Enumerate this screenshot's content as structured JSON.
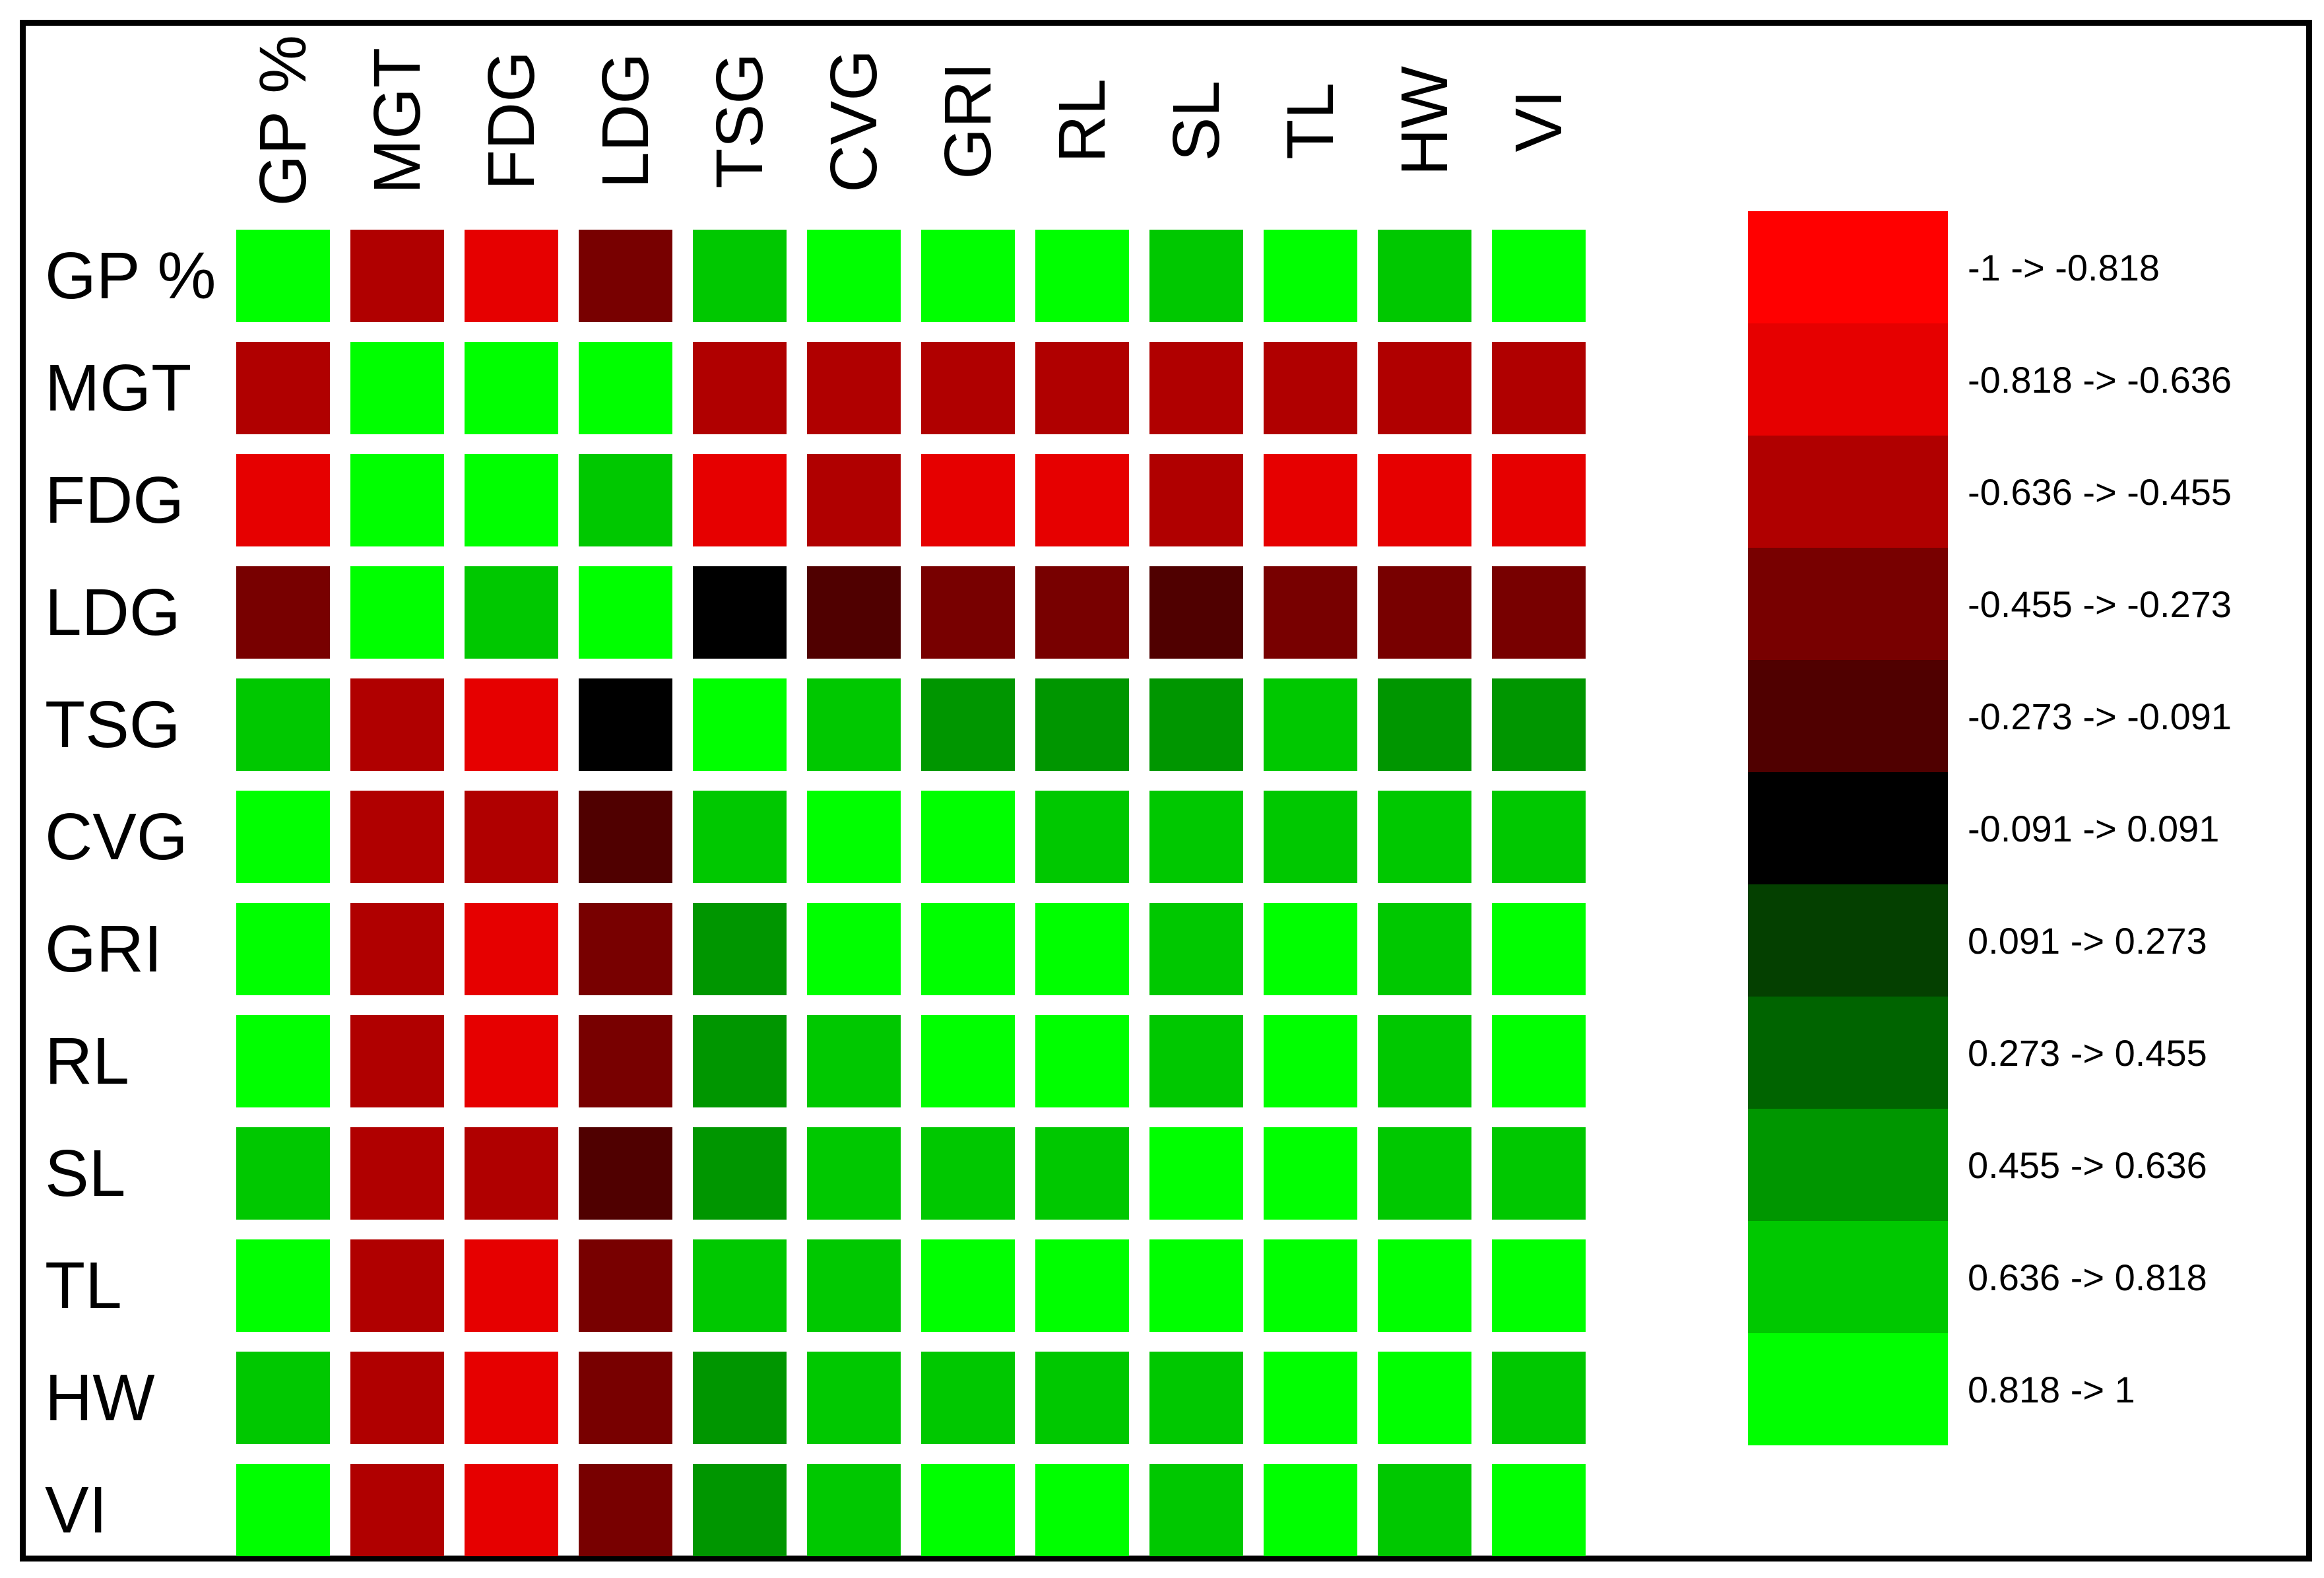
{
  "chart_data": {
    "type": "heatmap",
    "title": "",
    "row_labels": [
      "GP %",
      "MGT",
      "FDG",
      "LDG",
      "TSG",
      "CVG",
      "GRI",
      "RL",
      "SL",
      "TL",
      "HW",
      "VI"
    ],
    "col_labels": [
      "GP %",
      "MGT",
      "FDG",
      "LDG",
      "TSG",
      "CVG",
      "GRI",
      "RL",
      "SL",
      "TL",
      "HW",
      "VI"
    ],
    "value_range": [
      -1,
      1
    ],
    "grid": "off",
    "legend": {
      "position": "right",
      "bins": [
        {
          "label": "-1 -> -0.818",
          "color": "#FF0000"
        },
        {
          "label": "-0.818 -> -0.636",
          "color": "#E60000"
        },
        {
          "label": "-0.636 -> -0.455",
          "color": "#B00000"
        },
        {
          "label": "-0.455 -> -0.273",
          "color": "#780000"
        },
        {
          "label": "-0.273 -> -0.091",
          "color": "#500000"
        },
        {
          "label": "-0.091 -> 0.091",
          "color": "#000000"
        },
        {
          "label": "0.091 -> 0.273",
          "color": "#044000"
        },
        {
          "label": "0.273 -> 0.455",
          "color": "#006400"
        },
        {
          "label": "0.455 -> 0.636",
          "color": "#009600"
        },
        {
          "label": "0.636 -> 0.818",
          "color": "#00C800"
        },
        {
          "label": "0.818 -> 1",
          "color": "#00FF00"
        }
      ]
    },
    "cell_bins_note": "Each number is an index into legend.bins giving that cell's correlation interval; rows top-to-bottom, columns left-to-right.",
    "cell_bins": [
      [
        10,
        2,
        1,
        3,
        9,
        10,
        10,
        10,
        9,
        10,
        9,
        10
      ],
      [
        2,
        10,
        10,
        10,
        2,
        2,
        2,
        2,
        2,
        2,
        2,
        2
      ],
      [
        1,
        10,
        10,
        9,
        1,
        2,
        1,
        1,
        2,
        1,
        1,
        1
      ],
      [
        3,
        10,
        9,
        10,
        5,
        4,
        3,
        3,
        4,
        3,
        3,
        3
      ],
      [
        9,
        2,
        1,
        5,
        10,
        9,
        8,
        8,
        8,
        9,
        8,
        8
      ],
      [
        10,
        2,
        2,
        4,
        9,
        10,
        10,
        9,
        9,
        9,
        9,
        9
      ],
      [
        10,
        2,
        1,
        3,
        8,
        10,
        10,
        10,
        9,
        10,
        9,
        10
      ],
      [
        10,
        2,
        1,
        3,
        8,
        9,
        10,
        10,
        9,
        10,
        9,
        10
      ],
      [
        9,
        2,
        2,
        4,
        8,
        9,
        9,
        9,
        10,
        10,
        9,
        9
      ],
      [
        10,
        2,
        1,
        3,
        9,
        9,
        10,
        10,
        10,
        10,
        10,
        10
      ],
      [
        9,
        2,
        1,
        3,
        8,
        9,
        9,
        9,
        9,
        10,
        10,
        9
      ],
      [
        10,
        2,
        1,
        3,
        8,
        9,
        10,
        10,
        9,
        10,
        9,
        10
      ]
    ]
  }
}
